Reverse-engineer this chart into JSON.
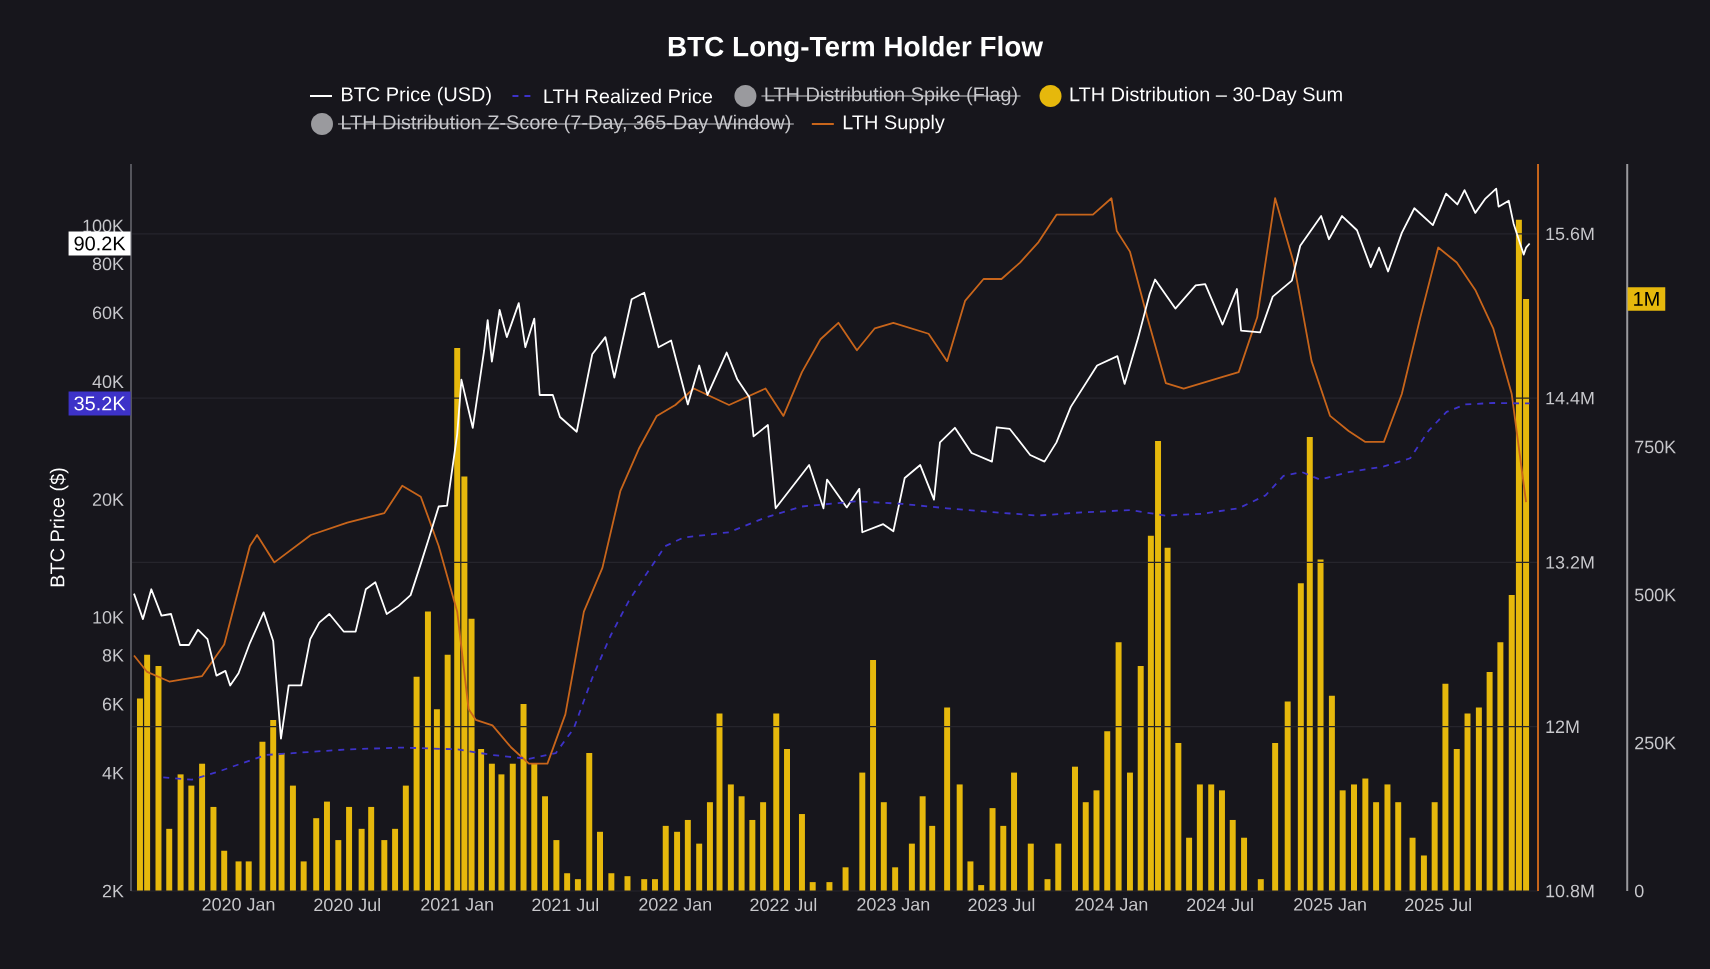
{
  "chart_data": {
    "type": "line",
    "title": "BTC Long-Term Holder Flow",
    "ylabel": "BTC Price ($)",
    "xlim": [
      "2019-07-05",
      "2025-12-15"
    ],
    "xticks": [
      {
        "value": "2020-01-01",
        "label": "2020 Jan"
      },
      {
        "value": "2020-07-01",
        "label": "2020 Jul"
      },
      {
        "value": "2021-01-01",
        "label": "2021 Jan"
      },
      {
        "value": "2021-07-01",
        "label": "2021 Jul"
      },
      {
        "value": "2022-01-01",
        "label": "2022 Jan"
      },
      {
        "value": "2022-07-01",
        "label": "2022 Jul"
      },
      {
        "value": "2023-01-01",
        "label": "2023 Jan"
      },
      {
        "value": "2023-07-01",
        "label": "2023 Jul"
      },
      {
        "value": "2024-01-01",
        "label": "2024 Jan"
      },
      {
        "value": "2024-07-01",
        "label": "2024 Jul"
      },
      {
        "value": "2025-01-01",
        "label": "2025 Jan"
      },
      {
        "value": "2025-07-01",
        "label": "2025 Jul"
      }
    ],
    "log": "y",
    "ylim": [
      2000,
      144000
    ],
    "yticks": [
      {
        "value": 2000,
        "label": "2K"
      },
      {
        "value": 4000,
        "label": "4K"
      },
      {
        "value": 6000,
        "label": "6K"
      },
      {
        "value": 8000,
        "label": "8K"
      },
      {
        "value": 10000,
        "label": "10K"
      },
      {
        "value": 20000,
        "label": "20K"
      },
      {
        "value": 40000,
        "label": "40K"
      },
      {
        "value": 60000,
        "label": "60K"
      },
      {
        "value": 80000,
        "label": "80K"
      },
      {
        "value": 100000,
        "label": "100K"
      }
    ],
    "y2lim": [
      10800000,
      16110000
    ],
    "y2ticks": [
      {
        "value": 10800000,
        "label": "10.8M"
      },
      {
        "value": 12000000,
        "label": "12M"
      },
      {
        "value": 13200000,
        "label": "13.2M"
      },
      {
        "value": 14400000,
        "label": "14.4M"
      },
      {
        "value": 15600000,
        "label": "15.6M"
      }
    ],
    "y3lim": [
      0,
      1228000
    ],
    "y3ticks": [
      {
        "value": 0,
        "label": "0"
      },
      {
        "value": 250000,
        "label": "250K"
      },
      {
        "value": 500000,
        "label": "500K"
      },
      {
        "value": 750000,
        "label": "750K"
      }
    ],
    "grid": "y2",
    "legend": "top",
    "annotations": [
      "90.2K",
      "35.2K",
      "1M"
    ],
    "series": [
      {
        "name": "BTC Price (USD)",
        "axis": "y",
        "color": "#ffffff",
        "x": [
          "2019-07-10",
          "2019-07-25",
          "2019-08-08",
          "2019-08-25",
          "2019-09-10",
          "2019-09-25",
          "2019-10-10",
          "2019-10-25",
          "2019-11-10",
          "2019-11-25",
          "2019-12-10",
          "2019-12-18",
          "2020-01-01",
          "2020-01-20",
          "2020-02-12",
          "2020-02-28",
          "2020-03-12",
          "2020-03-25",
          "2020-04-15",
          "2020-04-30",
          "2020-05-15",
          "2020-06-01",
          "2020-06-25",
          "2020-07-15",
          "2020-08-01",
          "2020-08-17",
          "2020-09-05",
          "2020-09-25",
          "2020-10-15",
          "2020-11-01",
          "2020-11-15",
          "2020-12-01",
          "2020-12-15",
          "2021-01-01",
          "2021-01-08",
          "2021-01-27",
          "2021-02-15",
          "2021-02-21",
          "2021-02-28",
          "2021-03-13",
          "2021-03-25",
          "2021-04-14",
          "2021-04-25",
          "2021-05-10",
          "2021-05-19",
          "2021-06-10",
          "2021-06-22",
          "2021-07-20",
          "2021-08-15",
          "2021-09-06",
          "2021-09-21",
          "2021-10-20",
          "2021-11-10",
          "2021-12-04",
          "2021-12-25",
          "2022-01-22",
          "2022-02-10",
          "2022-02-24",
          "2022-03-28",
          "2022-04-15",
          "2022-05-05",
          "2022-05-12",
          "2022-06-05",
          "2022-06-18",
          "2022-07-10",
          "2022-08-13",
          "2022-09-06",
          "2022-09-12",
          "2022-10-15",
          "2022-11-05",
          "2022-11-10",
          "2022-12-15",
          "2023-01-01",
          "2023-01-20",
          "2023-02-15",
          "2023-03-10",
          "2023-03-20",
          "2023-04-14",
          "2023-05-12",
          "2023-06-15",
          "2023-06-23",
          "2023-07-15",
          "2023-08-18",
          "2023-09-11",
          "2023-10-01",
          "2023-10-25",
          "2023-12-08",
          "2024-01-11",
          "2024-01-23",
          "2024-02-15",
          "2024-03-05",
          "2024-03-14",
          "2024-04-17",
          "2024-05-21",
          "2024-06-06",
          "2024-07-05",
          "2024-07-29",
          "2024-08-05",
          "2024-09-06",
          "2024-09-27",
          "2024-10-29",
          "2024-11-12",
          "2024-12-17",
          "2024-12-30",
          "2025-01-21",
          "2025-02-15",
          "2025-03-10",
          "2025-03-24",
          "2025-04-08",
          "2025-05-01",
          "2025-05-22",
          "2025-06-22",
          "2025-07-14",
          "2025-08-02",
          "2025-08-14",
          "2025-09-01",
          "2025-09-18",
          "2025-10-06",
          "2025-10-10",
          "2025-10-27",
          "2025-11-04",
          "2025-11-21",
          "2025-11-25",
          "2025-12-01"
        ],
        "values": [
          11500,
          9900,
          11800,
          10100,
          10200,
          8500,
          8500,
          9300,
          8800,
          7100,
          7300,
          6700,
          7200,
          8600,
          10300,
          8700,
          4900,
          6700,
          6700,
          8800,
          9700,
          10200,
          9200,
          9200,
          11800,
          12300,
          10200,
          10700,
          11400,
          13700,
          16000,
          19200,
          19300,
          29400,
          40500,
          30500,
          48000,
          57500,
          45000,
          61000,
          52000,
          63500,
          49000,
          58000,
          37000,
          37000,
          32500,
          29800,
          47000,
          52000,
          41000,
          65000,
          67500,
          49000,
          51000,
          35000,
          44000,
          37000,
          47500,
          40500,
          36500,
          29000,
          31000,
          19000,
          21000,
          24500,
          19000,
          22500,
          19100,
          21300,
          16500,
          17300,
          16600,
          22700,
          24500,
          20000,
          28000,
          30500,
          26300,
          25000,
          30600,
          30300,
          26000,
          25000,
          28000,
          34500,
          44000,
          46500,
          39500,
          52000,
          67000,
          73000,
          61500,
          70500,
          71000,
          56000,
          69000,
          54000,
          53500,
          66000,
          72500,
          89000,
          106000,
          92500,
          106000,
          97500,
          78500,
          88000,
          76500,
          96000,
          111000,
          100500,
          121000,
          113500,
          123500,
          108000,
          117500,
          124500,
          112000,
          116000,
          101500,
          84500,
          88000,
          90200
        ]
      },
      {
        "name": "LTH Realized Price",
        "axis": "y",
        "line_style": "dashed",
        "color": "#3d32c8",
        "x": [
          "2019-08-28",
          "2019-10-15",
          "2019-12-01",
          "2020-02-15",
          "2020-04-01",
          "2020-07-01",
          "2020-10-01",
          "2021-01-01",
          "2021-03-01",
          "2021-05-01",
          "2021-06-15",
          "2021-07-15",
          "2021-08-15",
          "2021-09-15",
          "2021-10-15",
          "2021-11-15",
          "2021-12-15",
          "2022-01-15",
          "2022-04-01",
          "2022-06-01",
          "2022-08-01",
          "2022-11-01",
          "2023-01-15",
          "2023-04-01",
          "2023-07-01",
          "2023-09-01",
          "2023-11-01",
          "2024-02-01",
          "2024-04-01",
          "2024-06-01",
          "2024-08-01",
          "2024-09-15",
          "2024-10-15",
          "2024-11-15",
          "2024-12-15",
          "2025-02-01",
          "2025-04-01",
          "2025-05-15",
          "2025-06-15",
          "2025-07-15",
          "2025-08-15",
          "2025-10-01",
          "2025-12-01"
        ],
        "values": [
          3900,
          3850,
          4050,
          4450,
          4500,
          4600,
          4650,
          4600,
          4450,
          4350,
          4500,
          5200,
          7000,
          9000,
          11000,
          13000,
          15200,
          16000,
          16500,
          18000,
          19200,
          19800,
          19500,
          19000,
          18500,
          18200,
          18500,
          18800,
          18200,
          18400,
          19000,
          20500,
          23000,
          23500,
          22500,
          23500,
          24300,
          25500,
          30000,
          33500,
          35000,
          35300,
          35200
        ]
      },
      {
        "name": "LTH Distribution Spike (Flag)",
        "type": "scatter",
        "axis": "y3",
        "color": "#9a9a9e"
      },
      {
        "name": "LTH Distribution – 30-Day Sum",
        "type": "bar",
        "axis": "y3",
        "color": "#e6b80c",
        "x": [
          "2019-07-20",
          "2019-08-01",
          "2019-08-20",
          "2019-09-07",
          "2019-09-26",
          "2019-10-14",
          "2019-11-01",
          "2019-11-20",
          "2019-12-08",
          "2020-01-01",
          "2020-01-18",
          "2020-02-10",
          "2020-02-28",
          "2020-03-13",
          "2020-04-01",
          "2020-04-19",
          "2020-05-10",
          "2020-05-28",
          "2020-06-16",
          "2020-07-04",
          "2020-07-25",
          "2020-08-10",
          "2020-09-01",
          "2020-09-19",
          "2020-10-07",
          "2020-10-25",
          "2020-11-13",
          "2020-11-28",
          "2020-12-16",
          "2021-01-01",
          "2021-01-13",
          "2021-01-25",
          "2021-02-10",
          "2021-02-28",
          "2021-03-16",
          "2021-04-04",
          "2021-04-22",
          "2021-05-10",
          "2021-05-28",
          "2021-06-16",
          "2021-07-04",
          "2021-07-22",
          "2021-08-10",
          "2021-08-28",
          "2021-09-16",
          "2021-10-13",
          "2021-11-10",
          "2021-11-28",
          "2021-12-16",
          "2022-01-04",
          "2022-01-22",
          "2022-02-10",
          "2022-02-28",
          "2022-03-16",
          "2022-04-04",
          "2022-04-22",
          "2022-05-10",
          "2022-05-28",
          "2022-06-19",
          "2022-07-07",
          "2022-08-01",
          "2022-08-19",
          "2022-09-16",
          "2022-10-13",
          "2022-11-10",
          "2022-11-28",
          "2022-12-16",
          "2023-01-04",
          "2023-02-01",
          "2023-02-19",
          "2023-03-07",
          "2023-04-01",
          "2023-04-22",
          "2023-05-10",
          "2023-05-28",
          "2023-06-16",
          "2023-07-04",
          "2023-07-22",
          "2023-08-19",
          "2023-09-16",
          "2023-10-04",
          "2023-11-01",
          "2023-11-19",
          "2023-12-07",
          "2023-12-25",
          "2024-01-13",
          "2024-02-01",
          "2024-02-19",
          "2024-03-07",
          "2024-03-19",
          "2024-04-04",
          "2024-04-22",
          "2024-05-10",
          "2024-05-28",
          "2024-06-16",
          "2024-07-04",
          "2024-07-22",
          "2024-08-10",
          "2024-09-07",
          "2024-10-01",
          "2024-10-22",
          "2024-11-13",
          "2024-11-28",
          "2024-12-16",
          "2025-01-04",
          "2025-01-22",
          "2025-02-10",
          "2025-03-01",
          "2025-03-19",
          "2025-04-07",
          "2025-04-25",
          "2025-05-19",
          "2025-06-07",
          "2025-06-25",
          "2025-07-13",
          "2025-08-01",
          "2025-08-19",
          "2025-09-07",
          "2025-09-25",
          "2025-10-13",
          "2025-11-01",
          "2025-11-13",
          "2025-11-25"
        ],
        "values": [
          325000,
          399000,
          380000,
          105000,
          197000,
          178000,
          215000,
          142000,
          68000,
          50000,
          50000,
          252000,
          289000,
          233000,
          178000,
          50000,
          123000,
          151000,
          86000,
          142000,
          105000,
          142000,
          86000,
          105000,
          178000,
          362000,
          472000,
          307000,
          399000,
          917000,
          700000,
          460000,
          240000,
          215000,
          197000,
          215000,
          316000,
          215000,
          160000,
          86000,
          30000,
          20000,
          233000,
          100000,
          30000,
          25000,
          20000,
          20000,
          110000,
          100000,
          120000,
          80000,
          150000,
          300000,
          180000,
          160000,
          120000,
          150000,
          300000,
          240000,
          130000,
          15000,
          15000,
          40000,
          200000,
          390000,
          150000,
          40000,
          80000,
          160000,
          110000,
          310000,
          180000,
          50000,
          10000,
          140000,
          110000,
          200000,
          80000,
          20000,
          80000,
          210000,
          150000,
          170000,
          270000,
          420000,
          200000,
          380000,
          600000,
          760000,
          580000,
          250000,
          90000,
          180000,
          180000,
          170000,
          120000,
          90000,
          20000,
          250000,
          320000,
          520000,
          767000,
          560000,
          330000,
          170000,
          180000,
          190000,
          150000,
          180000,
          150000,
          90000,
          60000,
          150000,
          350000,
          240000,
          300000,
          310000,
          370000,
          420000,
          500000,
          1134000,
          1000000
        ]
      },
      {
        "name": "LTH Distribution Z-Score (7-Day, 365-Day Window)",
        "type": "scatter",
        "axis": "y3",
        "color": "#9a9a9e"
      },
      {
        "name": "LTH Supply",
        "axis": "y2",
        "color": "#c8651b",
        "x": [
          "2019-07-10",
          "2019-08-01",
          "2019-09-07",
          "2019-11-01",
          "2019-12-08",
          "2020-01-20",
          "2020-02-01",
          "2020-03-01",
          "2020-05-01",
          "2020-07-01",
          "2020-09-01",
          "2020-10-01",
          "2020-11-01",
          "2020-12-01",
          "2021-01-01",
          "2021-01-20",
          "2021-02-01",
          "2021-03-01",
          "2021-04-01",
          "2021-05-01",
          "2021-06-01",
          "2021-07-01",
          "2021-08-01",
          "2021-09-01",
          "2021-10-01",
          "2021-11-01",
          "2021-12-01",
          "2022-01-01",
          "2022-02-01",
          "2022-04-01",
          "2022-06-01",
          "2022-07-01",
          "2022-08-01",
          "2022-09-01",
          "2022-10-01",
          "2022-11-01",
          "2022-12-01",
          "2023-01-01",
          "2023-03-01",
          "2023-04-01",
          "2023-05-01",
          "2023-06-01",
          "2023-07-01",
          "2023-08-01",
          "2023-09-01",
          "2023-10-01",
          "2023-12-01",
          "2024-01-01",
          "2024-01-10",
          "2024-02-01",
          "2024-03-01",
          "2024-04-01",
          "2024-05-01",
          "2024-07-01",
          "2024-08-01",
          "2024-09-01",
          "2024-10-01",
          "2024-11-01",
          "2024-12-01",
          "2025-01-01",
          "2025-02-01",
          "2025-03-01",
          "2025-04-01",
          "2025-05-01",
          "2025-06-01",
          "2025-07-01",
          "2025-08-01",
          "2025-09-01",
          "2025-10-01",
          "2025-11-01",
          "2025-11-25"
        ],
        "values": [
          12520000,
          12400000,
          12330000,
          12370000,
          12600000,
          13320000,
          13400000,
          13200000,
          13400000,
          13490000,
          13560000,
          13760000,
          13680000,
          13320000,
          12840000,
          12130000,
          12050000,
          12010000,
          11850000,
          11730000,
          11730000,
          12090000,
          12840000,
          13160000,
          13720000,
          14030000,
          14270000,
          14350000,
          14470000,
          14350000,
          14470000,
          14270000,
          14590000,
          14830000,
          14950000,
          14750000,
          14910000,
          14950000,
          14870000,
          14670000,
          15110000,
          15270000,
          15270000,
          15390000,
          15540000,
          15740000,
          15740000,
          15860000,
          15620000,
          15470000,
          14990000,
          14510000,
          14470000,
          14550000,
          14590000,
          14990000,
          15860000,
          15390000,
          14670000,
          14270000,
          14160000,
          14080000,
          14080000,
          14430000,
          14990000,
          15500000,
          15390000,
          15190000,
          14910000,
          14430000,
          13640000
        ]
      }
    ]
  }
}
